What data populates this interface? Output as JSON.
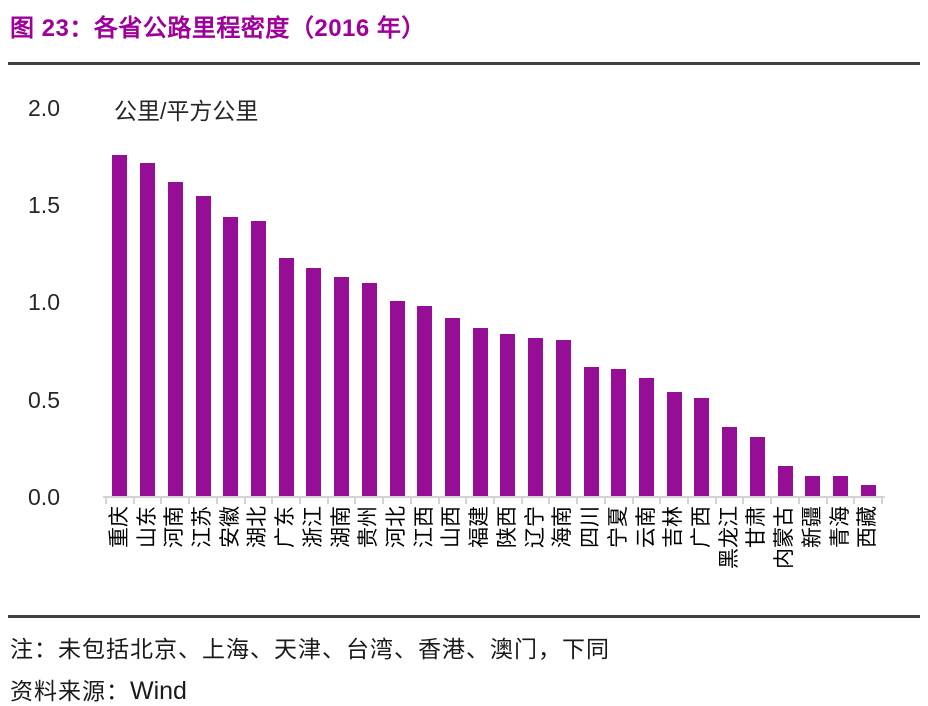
{
  "figure": {
    "title": "图 23：各省公路里程密度（2016 年）",
    "note": "注：未包括北京、上海、天津、台湾、香港、澳门，下同",
    "source_label": "资料来源：",
    "source_value": "Wind"
  },
  "colors": {
    "bar": "#960E96",
    "title": "#A0009A",
    "rule": "#404040",
    "axis": "#D3D3D3",
    "axis_text": "#262626",
    "category_text": "#000000"
  },
  "chart_data": {
    "type": "bar",
    "title": "各省公路里程密度（2016 年）",
    "unit_label": "公里/平方公里",
    "xlabel": "",
    "ylabel": "公里/平方公里",
    "categories": [
      "重庆",
      "山东",
      "河南",
      "江苏",
      "安徽",
      "湖北",
      "广东",
      "浙江",
      "湖南",
      "贵州",
      "河北",
      "江西",
      "山西",
      "福建",
      "陕西",
      "辽宁",
      "海南",
      "四川",
      "宁夏",
      "云南",
      "吉林",
      "广西",
      "黑龙江",
      "甘肃",
      "内蒙古",
      "新疆",
      "青海",
      "西藏"
    ],
    "values": [
      1.76,
      1.72,
      1.62,
      1.55,
      1.44,
      1.42,
      1.23,
      1.18,
      1.13,
      1.1,
      1.01,
      0.98,
      0.92,
      0.87,
      0.84,
      0.82,
      0.81,
      0.67,
      0.66,
      0.61,
      0.54,
      0.51,
      0.36,
      0.31,
      0.16,
      0.11,
      0.11,
      0.06
    ],
    "ylim": [
      0,
      2.0
    ],
    "yticks": [
      "0.0",
      "0.5",
      "1.0",
      "1.5",
      "2.0"
    ],
    "grid": false,
    "legend": "none",
    "bar_color": "#960E96"
  }
}
